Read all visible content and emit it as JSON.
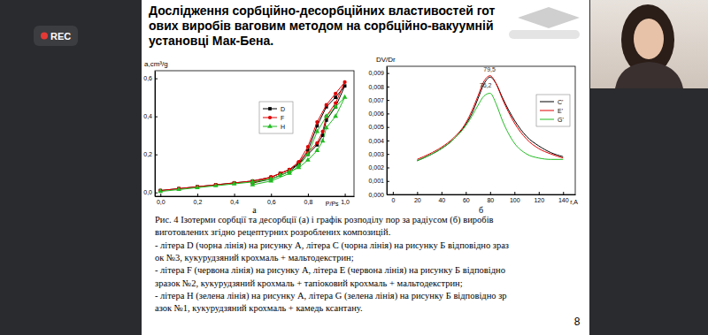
{
  "slide": {
    "recording_badge": "REC",
    "title_lines": [
      "Дослідження сорбційно-десорбційних властивостей гот",
      "ових виробів ваговим методом на сорбційно-вакуумній",
      "установці Мак-Бена."
    ],
    "caption_lines": [
      "Рис. 4 Ізотерми сорбції та десорбції (а) і графік розподілу пор за радіусом (б) виробів",
      "виготовлених згідно рецептурних розроблених композицій.",
      "- літера D (чорна лінія) на рисунку А, літера C (чорна лінія) на рисунку Б відповідно зраз",
      "ок №3, кукурудзяний крохмаль + мальтодекстрин;",
      "- літера F (червона лінія) на рисунку А, літера E (червона лінія) на рисунку Б відповідно",
      "зразок №2, кукурудзяний крохмаль + тапіоковий крохмаль + мальтодекстрин;",
      "- літера H (зелена лінія) на рисунку А, літера G (зелена лінія) на рисунку Б відповідно зр",
      "азок №1, кукурудзяний крохмаль + камедь ксантану."
    ],
    "page_number": "8"
  },
  "chart_data": [
    {
      "type": "line",
      "panel_label": "а",
      "y_label": "a,cm³/g",
      "x_label": "P/Ps",
      "xlim": [
        -0.03,
        1.05
      ],
      "ylim": [
        -0.02,
        0.64
      ],
      "xticks": [
        {
          "value": 0,
          "label": "0,0"
        },
        {
          "value": 0.2,
          "label": "0,2"
        },
        {
          "value": 0.4,
          "label": "0,4"
        },
        {
          "value": 0.6,
          "label": "0,6"
        },
        {
          "value": 0.8,
          "label": "0,8"
        },
        {
          "value": 1.0,
          "label": "1,0"
        }
      ],
      "yticks": [
        {
          "value": 0,
          "label": "0,0"
        },
        {
          "value": 0.2,
          "label": "0,2"
        },
        {
          "value": 0.4,
          "label": "0,4"
        },
        {
          "value": 0.6,
          "label": "0,6"
        }
      ],
      "legend": "upper left",
      "series": [
        {
          "name": "D",
          "color": "#000000",
          "marker": "square",
          "x": [
            0,
            0.1,
            0.2,
            0.3,
            0.4,
            0.5,
            0.6,
            0.65,
            0.7,
            0.75,
            0.8,
            0.85,
            0.88,
            0.9,
            0.95,
            1.0,
            0.95,
            0.9,
            0.85,
            0.8,
            0.75,
            0.7,
            0.6,
            0.5
          ],
          "values": [
            0.01,
            0.02,
            0.03,
            0.04,
            0.05,
            0.06,
            0.08,
            0.1,
            0.12,
            0.15,
            0.2,
            0.25,
            0.3,
            0.38,
            0.45,
            0.56,
            0.5,
            0.45,
            0.35,
            0.22,
            0.15,
            0.11,
            0.07,
            0.05
          ]
        },
        {
          "name": "F",
          "color": "#e00000",
          "marker": "circle",
          "x": [
            0,
            0.1,
            0.2,
            0.3,
            0.4,
            0.5,
            0.6,
            0.65,
            0.7,
            0.75,
            0.8,
            0.85,
            0.88,
            0.9,
            0.95,
            1.0,
            0.95,
            0.9,
            0.85,
            0.8,
            0.75,
            0.7,
            0.6,
            0.5
          ],
          "values": [
            0.01,
            0.02,
            0.03,
            0.04,
            0.05,
            0.06,
            0.08,
            0.1,
            0.12,
            0.16,
            0.21,
            0.26,
            0.32,
            0.4,
            0.47,
            0.58,
            0.52,
            0.46,
            0.37,
            0.24,
            0.16,
            0.12,
            0.08,
            0.05
          ]
        },
        {
          "name": "H",
          "color": "#22bb22",
          "marker": "triangle",
          "x": [
            0,
            0.1,
            0.2,
            0.3,
            0.4,
            0.5,
            0.6,
            0.65,
            0.7,
            0.75,
            0.8,
            0.85,
            0.88,
            0.9,
            0.95,
            1.0,
            0.95,
            0.9,
            0.85,
            0.8,
            0.75,
            0.7,
            0.6,
            0.5
          ],
          "values": [
            0.005,
            0.015,
            0.025,
            0.035,
            0.045,
            0.055,
            0.07,
            0.09,
            0.11,
            0.13,
            0.17,
            0.22,
            0.27,
            0.34,
            0.4,
            0.5,
            0.45,
            0.4,
            0.32,
            0.2,
            0.14,
            0.1,
            0.06,
            0.04
          ]
        }
      ]
    },
    {
      "type": "line",
      "panel_label": "б",
      "y_label": "DV/Dr",
      "x_label": "r,A",
      "xlim": [
        -5,
        150
      ],
      "ylim": [
        0,
        0.0095
      ],
      "xticks": [
        0,
        20,
        40,
        60,
        80,
        100,
        120,
        140
      ],
      "yticks": [
        {
          "value": 0,
          "label": "0,000"
        },
        {
          "value": 0.001,
          "label": "0,001"
        },
        {
          "value": 0.002,
          "label": "0,002"
        },
        {
          "value": 0.003,
          "label": "0,003"
        },
        {
          "value": 0.004,
          "label": "0,004"
        },
        {
          "value": 0.005,
          "label": "0,005"
        },
        {
          "value": 0.006,
          "label": "0,006"
        },
        {
          "value": 0.007,
          "label": "0,007"
        },
        {
          "value": 0.008,
          "label": "0,008"
        },
        {
          "value": 0.009,
          "label": "0,009"
        }
      ],
      "legend": "upper right",
      "annotations": [
        {
          "text": "79,5",
          "x": 79.5,
          "y": 0.0091
        },
        {
          "text": "76,2",
          "x": 76.2,
          "y": 0.0079
        }
      ],
      "series": [
        {
          "name": "C'",
          "color": "#000000",
          "marker": "none",
          "x": [
            20,
            30,
            40,
            50,
            60,
            65,
            70,
            75,
            80,
            85,
            90,
            100,
            110,
            120,
            130,
            140
          ],
          "values": [
            0.0025,
            0.0029,
            0.0034,
            0.0041,
            0.0052,
            0.006,
            0.0071,
            0.0082,
            0.0087,
            0.0082,
            0.0072,
            0.0055,
            0.0043,
            0.0036,
            0.0031,
            0.0028
          ]
        },
        {
          "name": "E'",
          "color": "#e00000",
          "marker": "none",
          "x": [
            20,
            30,
            40,
            50,
            60,
            65,
            70,
            75,
            80,
            85,
            90,
            100,
            110,
            120,
            130,
            140
          ],
          "values": [
            0.0026,
            0.003,
            0.0035,
            0.0042,
            0.0053,
            0.0062,
            0.0073,
            0.0084,
            0.0088,
            0.0082,
            0.0071,
            0.0053,
            0.0041,
            0.0034,
            0.003,
            0.0027
          ]
        },
        {
          "name": "G'",
          "color": "#22bb22",
          "marker": "none",
          "x": [
            20,
            30,
            40,
            50,
            60,
            65,
            70,
            75,
            80,
            85,
            90,
            100,
            110,
            120,
            130,
            140
          ],
          "values": [
            0.0025,
            0.0029,
            0.0034,
            0.0041,
            0.0051,
            0.0058,
            0.0066,
            0.0073,
            0.0075,
            0.0067,
            0.0055,
            0.0038,
            0.003,
            0.0027,
            0.0026,
            0.0026
          ]
        }
      ]
    }
  ]
}
